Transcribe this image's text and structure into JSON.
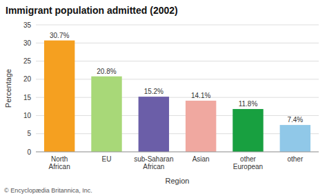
{
  "chart_data": {
    "type": "bar",
    "title": "Immigrant population admitted (2002)",
    "categories": [
      "North\nAfrican",
      "EU",
      "sub-Saharan\nAfrican",
      "Asian",
      "other\nEuropean",
      "other"
    ],
    "values": [
      30.7,
      20.8,
      15.2,
      14.1,
      11.8,
      7.4
    ],
    "value_labels": [
      "30.7%",
      "20.8%",
      "15.2%",
      "14.1%",
      "11.8%",
      "7.4%"
    ],
    "colors": [
      "#F5A020",
      "#A8D878",
      "#6B5EA8",
      "#F0A8A0",
      "#18A040",
      "#90C8E8"
    ],
    "xlabel": "Region",
    "ylabel": "Percentage",
    "ylim": [
      0,
      35
    ],
    "yticks": [
      0,
      5,
      10,
      15,
      20,
      25,
      30,
      35
    ],
    "grid": true,
    "data_labels": true,
    "footnote": "© Encyclopædia Britannica, Inc."
  }
}
